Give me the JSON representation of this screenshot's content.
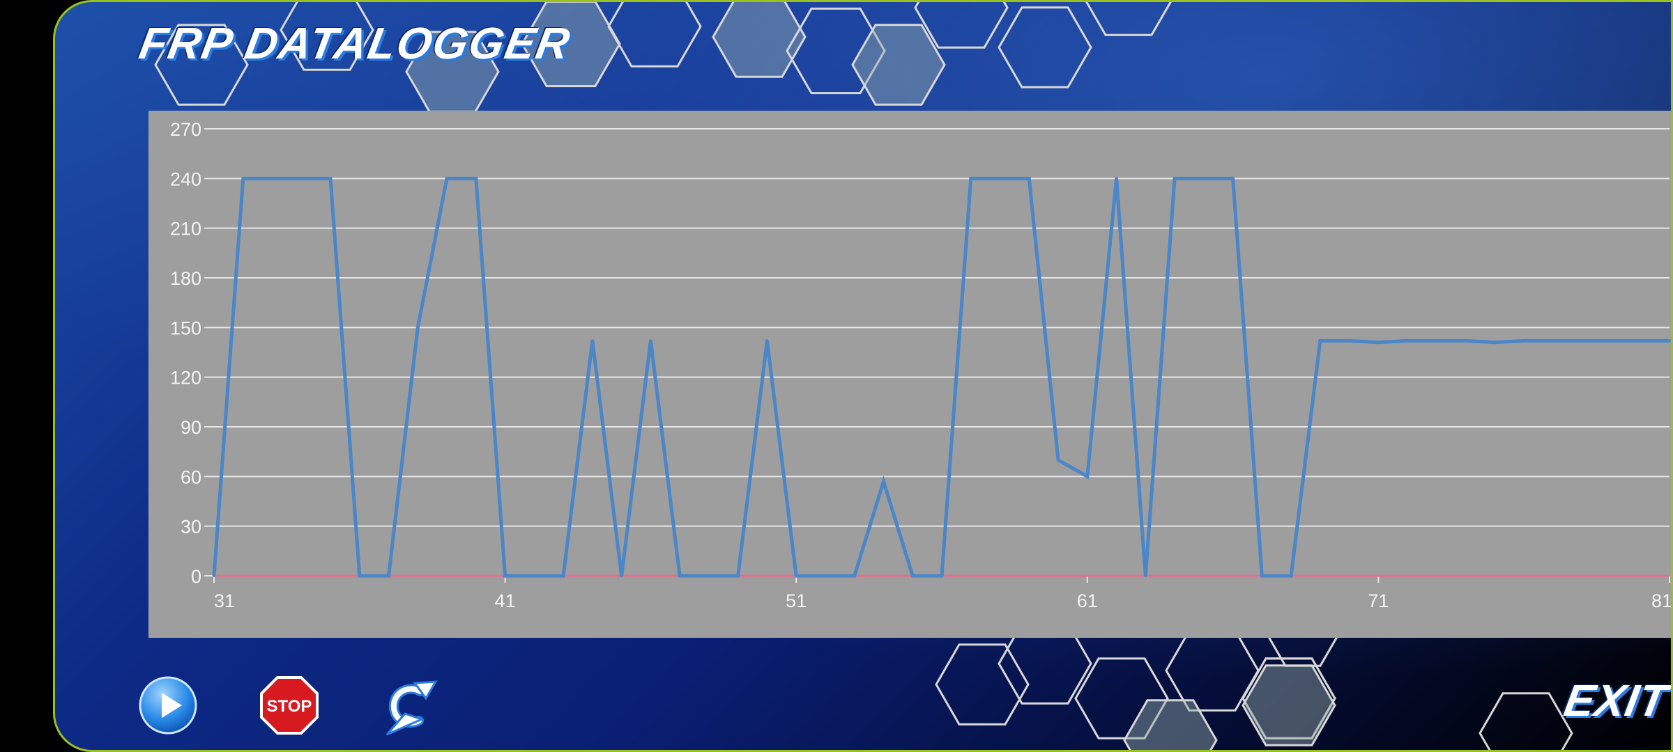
{
  "app": {
    "title": "FRP DATALOGGER"
  },
  "controls": {
    "stop_label": "STOP",
    "exit_label": "EXIT",
    "play_icon": "play-icon",
    "stop_icon": "stop-sign-icon",
    "refresh_icon": "refresh-icon"
  },
  "colors": {
    "accent_border": "#9ac21e",
    "chart_background": "#9e9e9e",
    "series_primary": "#4a86c8",
    "series_secondary": "#e0708e"
  },
  "chart_data": {
    "type": "line",
    "title": "",
    "xlabel": "",
    "ylabel": "",
    "xlim": [
      31,
      81
    ],
    "ylim": [
      0,
      270
    ],
    "yticks": [
      "270",
      "240",
      "210",
      "180",
      "150",
      "120",
      "90",
      "60",
      "30",
      "0"
    ],
    "xticks": [
      "31",
      "41",
      "51",
      "61",
      "71",
      "81"
    ],
    "grid": true,
    "legend": "none",
    "series": [
      {
        "x": [
          31,
          32,
          33,
          34,
          35,
          36,
          37,
          38,
          39,
          40,
          41,
          42,
          43,
          44,
          45,
          46,
          47,
          48,
          49,
          50,
          51,
          52,
          53,
          54,
          55,
          56,
          57,
          58,
          59,
          60,
          61,
          62,
          63,
          64,
          65,
          66,
          67,
          68,
          69,
          70,
          71,
          72,
          73,
          74,
          75,
          76,
          77,
          78,
          79,
          80,
          81
        ],
        "values": [
          0,
          240,
          240,
          240,
          240,
          0,
          0,
          150,
          240,
          240,
          0,
          0,
          0,
          142,
          0,
          142,
          0,
          0,
          0,
          142,
          0,
          0,
          0,
          57,
          0,
          0,
          240,
          240,
          240,
          70,
          60,
          240,
          0,
          240,
          240,
          240,
          0,
          0,
          142,
          142,
          141,
          142,
          142,
          142,
          141,
          142,
          142,
          142,
          142,
          142,
          142
        ]
      },
      {
        "x": [
          31,
          81
        ],
        "values": [
          0,
          0
        ]
      }
    ]
  }
}
